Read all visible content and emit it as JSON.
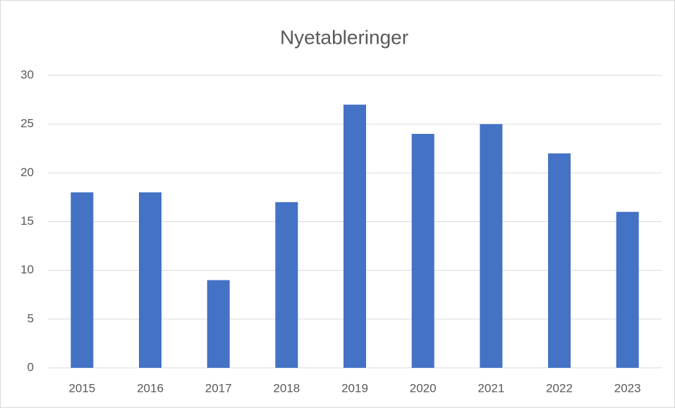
{
  "chart_data": {
    "type": "bar",
    "title": "Nyetableringer",
    "categories": [
      "2015",
      "2016",
      "2017",
      "2018",
      "2019",
      "2020",
      "2021",
      "2022",
      "2023"
    ],
    "values": [
      18,
      18,
      9,
      17,
      27,
      24,
      25,
      22,
      16
    ],
    "color": "#4472c4",
    "ylim": [
      0,
      30
    ],
    "yticks": [
      0,
      5,
      10,
      15,
      20,
      25,
      30
    ],
    "grid": true
  }
}
